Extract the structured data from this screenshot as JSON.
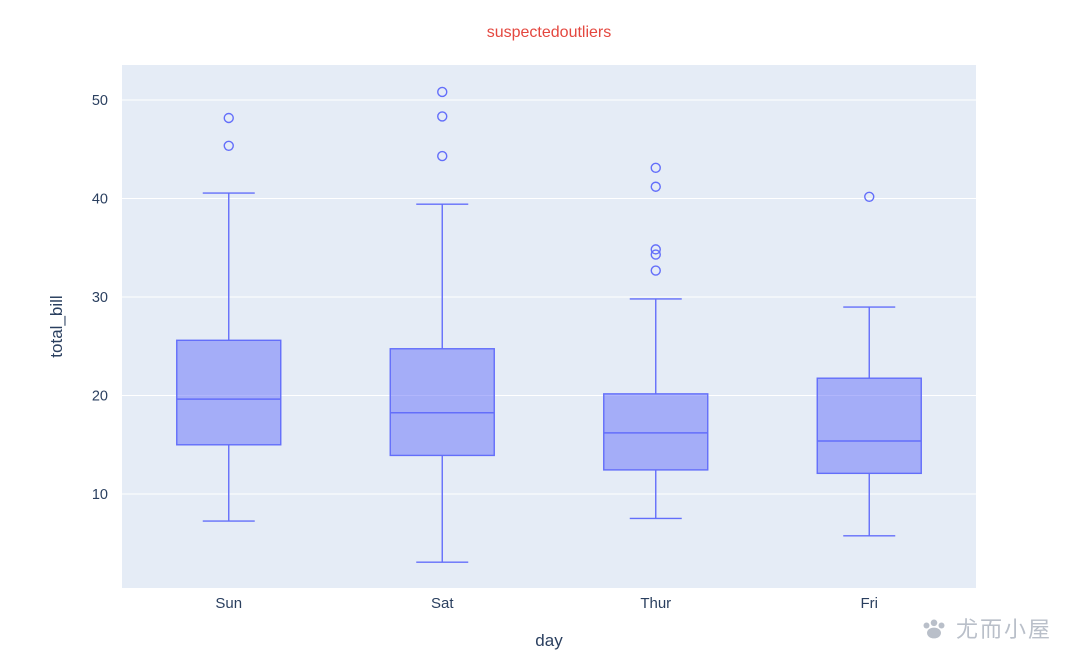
{
  "title": {
    "text": "suspectedoutliers",
    "color": "#e4473f"
  },
  "watermark": {
    "text": "尤而小屋",
    "color": "#b9bfc9"
  },
  "chart_data": {
    "type": "box",
    "title": "suspectedoutliers",
    "xlabel": "day",
    "ylabel": "total_bill",
    "categories": [
      "Sun",
      "Sat",
      "Thur",
      "Fri"
    ],
    "yticks": [
      10,
      20,
      30,
      40,
      50
    ],
    "ylim": [
      0.45,
      53.55
    ],
    "grid": true,
    "legend": "none",
    "boxpoints": "suspectedoutliers",
    "series": [
      {
        "name": "Sun",
        "lower_whisker": 7.25,
        "q1": 14.99,
        "median": 19.63,
        "q3": 25.6,
        "upper_whisker": 40.55,
        "outliers": [
          45.35,
          48.17
        ]
      },
      {
        "name": "Sat",
        "lower_whisker": 3.07,
        "q1": 13.91,
        "median": 18.24,
        "q3": 24.74,
        "upper_whisker": 39.42,
        "outliers": [
          44.3,
          48.33,
          50.81
        ]
      },
      {
        "name": "Thur",
        "lower_whisker": 7.51,
        "q1": 12.44,
        "median": 16.2,
        "q3": 20.16,
        "upper_whisker": 29.8,
        "outliers": [
          32.68,
          34.3,
          34.83,
          41.19,
          43.11
        ]
      },
      {
        "name": "Fri",
        "lower_whisker": 5.75,
        "q1": 12.09,
        "median": 15.38,
        "q3": 21.75,
        "upper_whisker": 28.97,
        "outliers": [
          40.17
        ]
      }
    ],
    "colors": {
      "box_line": "#636efa",
      "box_fill": "rgba(99,110,250,0.5)",
      "plot_bg": "#e5ecf6",
      "paper_bg": "#ffffff",
      "text": "#2a3f5f",
      "grid": "#ffffff",
      "title": "#e4473f"
    }
  }
}
